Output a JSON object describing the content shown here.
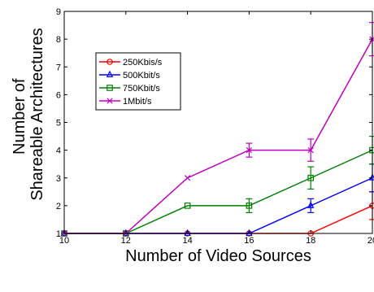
{
  "chart_data": {
    "type": "line",
    "xlabel": "Number of Video Sources",
    "ylabel_lines": [
      "Number of",
      "Shareable Architectures"
    ],
    "x": [
      10,
      12,
      14,
      16,
      18,
      20
    ],
    "xticks": [
      10,
      12,
      14,
      16,
      18,
      20
    ],
    "yticks": [
      1,
      2,
      3,
      4,
      5,
      6,
      7,
      8,
      9
    ],
    "xlim": [
      10,
      20
    ],
    "ylim": [
      1,
      9
    ],
    "legend_position": "upper-left",
    "series": [
      {
        "name": "250Kbis/s",
        "color": "#ff0000",
        "marker": "circle",
        "values": [
          1,
          1,
          1,
          1,
          1,
          2
        ],
        "errors": [
          0,
          0,
          0,
          0,
          0,
          0.5
        ]
      },
      {
        "name": "500Kbit/s",
        "color": "#0000ff",
        "marker": "triangle",
        "values": [
          1,
          1,
          1,
          1,
          2,
          3
        ],
        "errors": [
          0,
          0,
          0,
          0,
          0.25,
          0.5
        ]
      },
      {
        "name": "750Kbit/s",
        "color": "#008000",
        "marker": "square",
        "values": [
          1,
          1,
          2,
          2,
          3,
          4
        ],
        "errors": [
          0,
          0,
          0,
          0.25,
          0.4,
          0.5
        ]
      },
      {
        "name": "1Mbit/s",
        "color": "#bf00bf",
        "marker": "x",
        "values": [
          1,
          1,
          3,
          4,
          4,
          8
        ],
        "errors": [
          0,
          0,
          0,
          0.25,
          0.4,
          0.6
        ]
      }
    ]
  }
}
